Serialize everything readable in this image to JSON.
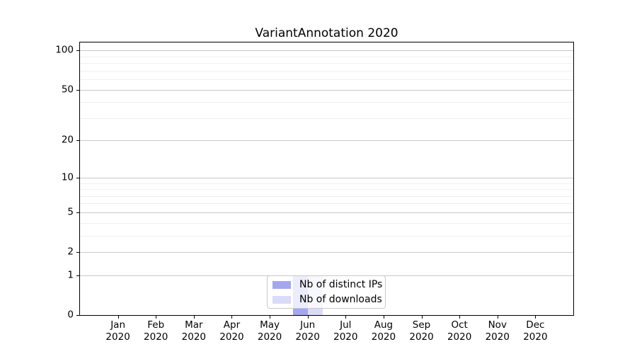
{
  "figure": {
    "background": "#ffffff",
    "spine_color": "#000000",
    "major_grid_color": "#c9c9c9",
    "minor_grid_color": "#f0f0f0"
  },
  "chart_data": {
    "type": "bar",
    "title": "VariantAnnotation 2020",
    "months": [
      "Jan",
      "Feb",
      "Mar",
      "Apr",
      "May",
      "Jun",
      "Jul",
      "Aug",
      "Sep",
      "Oct",
      "Nov",
      "Dec"
    ],
    "year": "2020",
    "series": [
      {
        "name": "Nb of distinct IPs",
        "color": "#a4a7ef",
        "values": [
          0,
          0,
          0,
          0,
          0,
          1,
          0,
          0,
          0,
          0,
          0,
          0
        ]
      },
      {
        "name": "Nb of downloads",
        "color": "#d9dbf7",
        "values": [
          0,
          0,
          0,
          0,
          0,
          1,
          0,
          0,
          0,
          0,
          0,
          0
        ]
      }
    ],
    "y_axis": {
      "scale": "log10(1+v)",
      "ticks": [
        0,
        1,
        2,
        5,
        10,
        20,
        50,
        100
      ],
      "minor_ticks": [
        3,
        4,
        6,
        7,
        8,
        9,
        30,
        40,
        60,
        70,
        80,
        90
      ],
      "max": 115
    },
    "legend": {
      "position": "bottom-center"
    },
    "grid": true
  }
}
